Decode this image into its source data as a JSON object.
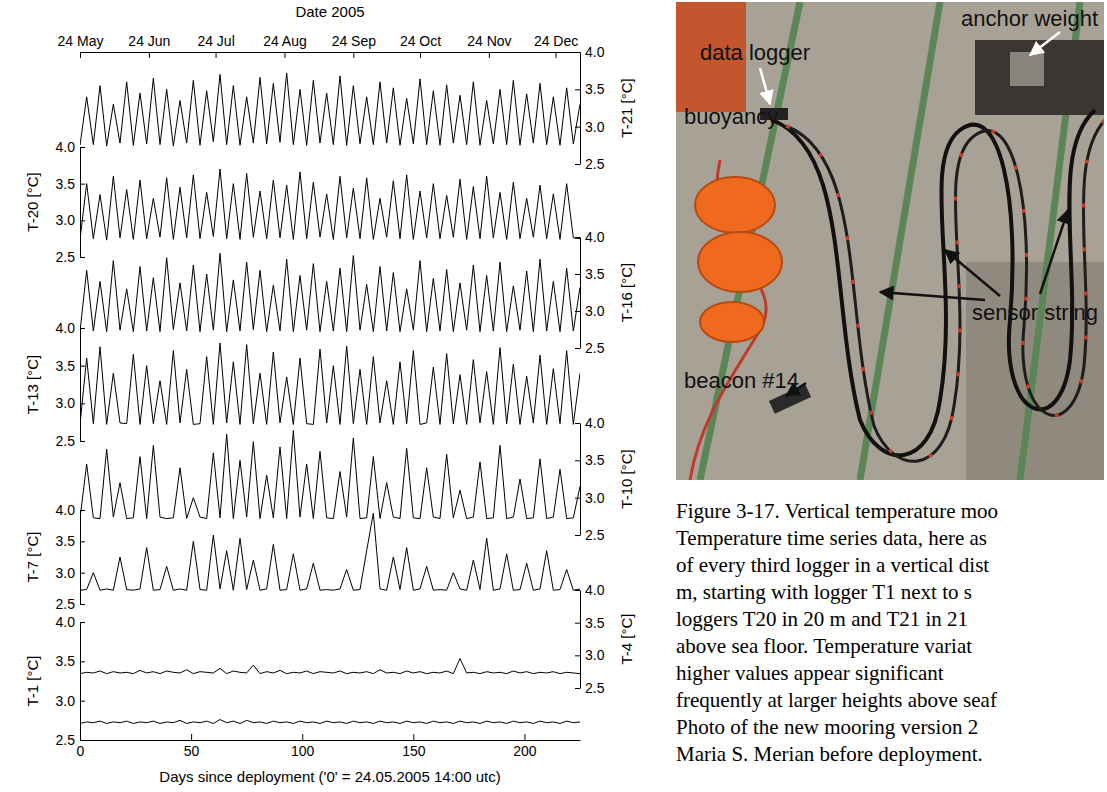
{
  "chart_data": {
    "type": "line",
    "x2label": "Date 2005",
    "xlabel": "Days since deployment ('0' = 24.05.2005 14:00 utc)",
    "xlim": [
      0,
      225
    ],
    "xticks": [
      0,
      50,
      100,
      150,
      200
    ],
    "x2lim": [
      0,
      225
    ],
    "x2ticks": [
      {
        "value": 0,
        "label": "24 May"
      },
      {
        "value": 31,
        "label": "24 Jun"
      },
      {
        "value": 61,
        "label": "24 Jul"
      },
      {
        "value": 92,
        "label": "24 Aug"
      },
      {
        "value": 123,
        "label": "24 Sep"
      },
      {
        "value": 153,
        "label": "24 Oct"
      },
      {
        "value": 184,
        "label": "24 Nov"
      },
      {
        "value": 214,
        "label": "24 Dec"
      }
    ],
    "x": [
      0,
      3,
      6,
      9,
      12,
      15,
      18,
      21,
      24,
      27,
      30,
      33,
      36,
      39,
      42,
      45,
      48,
      51,
      54,
      57,
      60,
      63,
      66,
      69,
      72,
      75,
      78,
      81,
      84,
      87,
      90,
      93,
      96,
      99,
      102,
      105,
      108,
      111,
      114,
      117,
      120,
      123,
      126,
      129,
      132,
      135,
      138,
      141,
      144,
      147,
      150,
      153,
      156,
      159,
      162,
      165,
      168,
      171,
      174,
      177,
      180,
      183,
      186,
      189,
      192,
      195,
      198,
      201,
      204,
      207,
      210,
      213,
      216,
      219,
      222,
      225
    ],
    "series": [
      {
        "ylabel": "T-21 [°C]",
        "color": "#000000",
        "ylim": [
          2.5,
          4
        ],
        "yticks": [
          2.5,
          {
            "value": 3,
            "label": "3.0"
          },
          3.5,
          {
            "value": 4,
            "label": "4.0"
          }
        ],
        "values": [
          2.75,
          3.4,
          2.76,
          3.55,
          2.74,
          3.3,
          2.78,
          3.6,
          2.75,
          3.45,
          2.77,
          3.65,
          2.76,
          3.5,
          2.74,
          3.35,
          2.78,
          3.62,
          2.75,
          3.48,
          2.8,
          3.7,
          2.76,
          3.55,
          2.75,
          3.4,
          2.78,
          3.66,
          2.77,
          3.58,
          2.79,
          3.72,
          2.76,
          3.5,
          2.75,
          3.62,
          2.78,
          3.45,
          2.76,
          3.68,
          2.75,
          3.55,
          2.77,
          3.4,
          2.76,
          3.6,
          2.78,
          3.52,
          2.75,
          3.38,
          2.77,
          3.64,
          2.76,
          3.48,
          2.75,
          3.56,
          2.78,
          3.42,
          2.76,
          3.6,
          2.75,
          3.35,
          2.77,
          3.5,
          2.76,
          3.62,
          2.75,
          3.44,
          2.78,
          3.58,
          2.76,
          3.4,
          2.75,
          3.52,
          2.77,
          3.3
        ]
      },
      {
        "ylabel": "T-20 [°C]",
        "color": "#000000",
        "ylim": [
          2.5,
          4
        ],
        "yticks": [
          2.5,
          {
            "value": 3,
            "label": "3.0"
          },
          3.5,
          {
            "value": 4,
            "label": "4.0"
          }
        ],
        "values": [
          2.74,
          3.5,
          2.75,
          3.35,
          2.73,
          3.6,
          2.76,
          3.42,
          2.74,
          3.55,
          2.75,
          3.3,
          2.77,
          3.58,
          2.74,
          3.45,
          2.76,
          3.62,
          2.75,
          3.38,
          2.78,
          3.7,
          2.75,
          3.5,
          2.74,
          3.64,
          2.77,
          3.4,
          2.75,
          3.55,
          2.76,
          3.48,
          2.74,
          3.66,
          2.75,
          3.52,
          2.77,
          3.36,
          2.74,
          3.6,
          2.76,
          3.44,
          2.75,
          3.58,
          2.74,
          3.3,
          2.77,
          3.54,
          2.75,
          3.62,
          2.74,
          3.4,
          2.76,
          3.5,
          2.75,
          3.34,
          2.77,
          3.56,
          2.74,
          3.46,
          2.75,
          3.6,
          2.76,
          3.38,
          2.74,
          3.52,
          2.75,
          3.3,
          2.77,
          3.48,
          2.75,
          3.36,
          2.74,
          3.5,
          2.76,
          2.75
        ]
      },
      {
        "ylabel": "T-16 [°C]",
        "color": "#000000",
        "ylim": [
          2.5,
          4
        ],
        "yticks": [
          2.5,
          {
            "value": 3,
            "label": "3.0"
          },
          3.5,
          {
            "value": 4,
            "label": "4.0"
          }
        ],
        "values": [
          2.72,
          3.55,
          2.73,
          3.4,
          2.72,
          3.68,
          2.74,
          3.3,
          2.72,
          3.6,
          2.73,
          3.45,
          2.72,
          3.72,
          2.75,
          3.38,
          2.73,
          3.62,
          2.72,
          3.5,
          2.74,
          3.78,
          2.72,
          3.42,
          2.73,
          3.66,
          2.75,
          3.55,
          2.72,
          3.35,
          2.73,
          3.7,
          2.72,
          3.48,
          2.74,
          3.64,
          2.72,
          3.4,
          2.73,
          3.58,
          2.72,
          3.75,
          2.74,
          3.36,
          2.72,
          3.6,
          2.73,
          3.52,
          2.72,
          3.3,
          2.74,
          3.68,
          2.72,
          3.44,
          2.73,
          3.56,
          2.72,
          3.38,
          2.74,
          3.62,
          2.72,
          3.48,
          2.73,
          3.66,
          2.72,
          3.34,
          2.74,
          3.54,
          2.72,
          3.7,
          2.73,
          3.4,
          2.72,
          3.58,
          2.73,
          3.32
        ]
      },
      {
        "ylabel": "T-13 [°C]",
        "color": "#000000",
        "ylim": [
          2.5,
          4
        ],
        "yticks": [
          2.5,
          {
            "value": 3,
            "label": "3.0"
          },
          3.5,
          {
            "value": 4,
            "label": "4.0"
          }
        ],
        "values": [
          2.72,
          3.6,
          2.73,
          3.75,
          2.72,
          3.4,
          2.74,
          2.73,
          3.65,
          2.72,
          3.5,
          2.73,
          3.3,
          2.72,
          3.7,
          2.74,
          3.45,
          2.72,
          2.73,
          3.62,
          2.72,
          3.8,
          2.74,
          3.55,
          2.72,
          3.78,
          2.73,
          3.4,
          2.72,
          3.68,
          2.74,
          3.35,
          2.72,
          3.6,
          2.73,
          2.72,
          3.72,
          2.74,
          3.5,
          2.72,
          3.76,
          2.73,
          3.45,
          2.72,
          3.62,
          2.74,
          3.3,
          2.72,
          3.55,
          2.73,
          3.7,
          2.72,
          2.74,
          3.48,
          2.72,
          3.66,
          2.73,
          3.38,
          2.72,
          3.58,
          2.74,
          3.42,
          2.72,
          3.74,
          2.73,
          3.52,
          2.72,
          3.36,
          2.74,
          3.64,
          2.72,
          3.46,
          2.73,
          3.7,
          2.72,
          3.4
        ]
      },
      {
        "ylabel": "T-10 [°C]",
        "color": "#000000",
        "ylim": [
          2.5,
          4
        ],
        "yticks": [
          2.5,
          {
            "value": 3,
            "label": "3.0"
          },
          3.5,
          {
            "value": 4,
            "label": "4.0"
          }
        ],
        "values": [
          2.72,
          3.45,
          2.73,
          2.72,
          3.65,
          2.74,
          3.2,
          2.72,
          2.73,
          3.55,
          2.72,
          3.7,
          2.74,
          2.72,
          2.73,
          3.4,
          2.72,
          3.0,
          2.74,
          2.72,
          3.6,
          2.73,
          3.85,
          2.72,
          3.5,
          2.74,
          3.75,
          2.72,
          3.3,
          2.73,
          3.68,
          2.72,
          3.9,
          2.74,
          3.45,
          2.72,
          3.62,
          2.73,
          2.72,
          3.35,
          2.74,
          3.8,
          2.72,
          2.73,
          3.55,
          2.72,
          3.2,
          2.74,
          2.72,
          3.66,
          2.73,
          2.72,
          3.4,
          2.74,
          2.72,
          3.58,
          2.73,
          3.1,
          2.72,
          2.74,
          3.48,
          2.72,
          2.73,
          3.7,
          2.72,
          2.74,
          3.25,
          2.72,
          2.73,
          3.52,
          2.72,
          2.74,
          3.38,
          2.72,
          2.73,
          3.15
        ]
      },
      {
        "ylabel": "T-7 [°C]",
        "color": "#000000",
        "ylim": [
          2.5,
          4
        ],
        "yticks": [
          2.5,
          {
            "value": 3,
            "label": "3.0"
          },
          3.5,
          {
            "value": 4,
            "label": "4.0"
          }
        ],
        "values": [
          2.72,
          2.73,
          3.0,
          2.72,
          2.74,
          2.72,
          3.25,
          2.73,
          2.72,
          2.74,
          3.4,
          2.72,
          2.73,
          3.1,
          2.72,
          2.74,
          2.72,
          3.5,
          2.73,
          2.72,
          3.6,
          2.74,
          3.35,
          2.72,
          3.55,
          2.73,
          3.2,
          2.72,
          2.74,
          3.45,
          2.72,
          2.73,
          3.3,
          2.72,
          2.74,
          3.15,
          2.72,
          2.73,
          2.72,
          2.74,
          3.05,
          2.72,
          2.73,
          3.35,
          3.95,
          2.74,
          2.72,
          3.25,
          2.73,
          3.4,
          2.72,
          2.74,
          3.1,
          2.72,
          2.73,
          2.72,
          3.0,
          2.74,
          2.72,
          3.2,
          2.73,
          3.55,
          2.72,
          2.74,
          3.3,
          2.72,
          2.73,
          3.15,
          2.72,
          2.74,
          3.35,
          2.72,
          2.73,
          3.05,
          2.72,
          2.74
        ]
      },
      {
        "ylabel": "T-4 [°C]",
        "color": "#000000",
        "ylim": [
          2.5,
          4
        ],
        "yticks": [
          2.5,
          {
            "value": 3,
            "label": "3.0"
          },
          3.5,
          {
            "value": 4,
            "label": "4.0"
          }
        ],
        "values": [
          2.72,
          2.74,
          2.73,
          2.76,
          2.72,
          2.75,
          2.73,
          2.74,
          2.72,
          2.77,
          2.73,
          2.75,
          2.72,
          2.76,
          2.74,
          2.73,
          2.78,
          2.72,
          2.75,
          2.74,
          2.73,
          2.8,
          2.72,
          2.76,
          2.74,
          2.73,
          2.85,
          2.72,
          2.75,
          2.73,
          2.77,
          2.72,
          2.74,
          2.73,
          2.76,
          2.72,
          2.75,
          2.74,
          2.73,
          2.76,
          2.72,
          2.74,
          2.73,
          2.75,
          2.72,
          2.78,
          2.73,
          2.74,
          2.72,
          2.76,
          2.73,
          2.75,
          2.72,
          2.74,
          2.73,
          2.76,
          2.72,
          2.95,
          2.73,
          2.74,
          2.72,
          2.75,
          2.73,
          2.74,
          2.72,
          2.76,
          2.73,
          2.75,
          2.72,
          2.74,
          2.73,
          2.75,
          2.72,
          2.74,
          2.73,
          2.72
        ]
      },
      {
        "ylabel": "T-1 [°C]",
        "color": "#000000",
        "ylim": [
          2.5,
          4
        ],
        "yticks": [
          2.5,
          {
            "value": 3,
            "label": "3.0"
          },
          3.5,
          {
            "value": 4,
            "label": "4.0"
          }
        ],
        "values": [
          2.71,
          2.73,
          2.72,
          2.74,
          2.71,
          2.73,
          2.72,
          2.74,
          2.71,
          2.73,
          2.72,
          2.74,
          2.71,
          2.73,
          2.72,
          2.75,
          2.71,
          2.73,
          2.72,
          2.74,
          2.71,
          2.76,
          2.72,
          2.74,
          2.71,
          2.75,
          2.72,
          2.73,
          2.71,
          2.74,
          2.72,
          2.73,
          2.71,
          2.74,
          2.72,
          2.73,
          2.71,
          2.74,
          2.72,
          2.73,
          2.71,
          2.74,
          2.72,
          2.73,
          2.71,
          2.74,
          2.72,
          2.73,
          2.71,
          2.74,
          2.72,
          2.73,
          2.71,
          2.74,
          2.72,
          2.73,
          2.71,
          2.74,
          2.72,
          2.73,
          2.71,
          2.74,
          2.72,
          2.73,
          2.71,
          2.74,
          2.72,
          2.73,
          2.71,
          2.74,
          2.72,
          2.73,
          2.71,
          2.74,
          2.72,
          2.73
        ]
      }
    ]
  },
  "photo": {
    "labels": [
      "data logger",
      "anchor weight",
      "buoyancy",
      "sensor string",
      "beacon #14"
    ]
  },
  "caption": {
    "lines": [
      "Figure 3-17. Vertical temperature moo",
      "Temperature time series data, here as",
      "of every third logger in a vertical dist",
      "m, starting with logger T1 next to s",
      "loggers T20 in 20 m and T21 in 21",
      "above sea floor. Temperature variat",
      "higher values appear significant",
      "frequently at larger heights above seaf",
      "Photo of the new mooring version 2",
      "Maria S. Merian before deployment."
    ]
  }
}
